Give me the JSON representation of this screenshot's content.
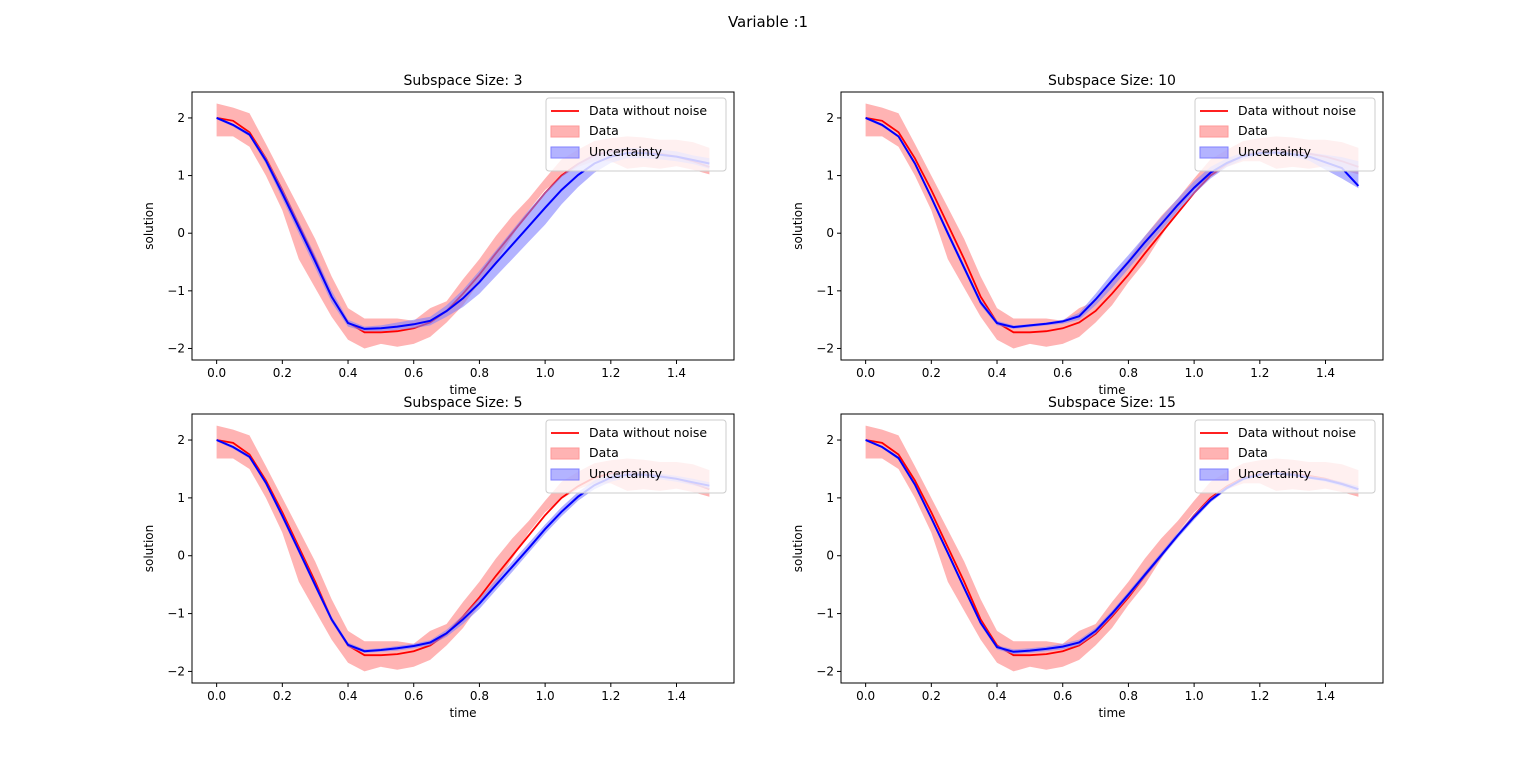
{
  "figure": {
    "suptitle": "Variable :1"
  },
  "colors": {
    "truth": "#ff0000",
    "data_band": "#ff9999",
    "uncertainty_band": "#8080ff",
    "model_line": "#0000ff"
  },
  "chart_data": [
    {
      "type": "line",
      "title": "Subspace Size: 3",
      "xlabel": "time",
      "ylabel": "solution",
      "xlim": [
        -0.075,
        1.575
      ],
      "ylim": [
        -2.2,
        2.45
      ],
      "xticks": [
        "0.0",
        "0.2",
        "0.4",
        "0.6",
        "0.8",
        "1.0",
        "1.2",
        "1.4"
      ],
      "yticks": [
        "2",
        "1",
        "0",
        "−1",
        "−2"
      ],
      "legend": {
        "position": "upper-right",
        "labels": [
          "Data without noise",
          "Data",
          "Uncertainty"
        ]
      },
      "x": [
        0.0,
        0.05,
        0.1,
        0.15,
        0.2,
        0.25,
        0.3,
        0.35,
        0.4,
        0.45,
        0.5,
        0.55,
        0.6,
        0.65,
        0.7,
        0.75,
        0.8,
        0.85,
        0.9,
        0.95,
        1.0,
        1.05,
        1.1,
        1.15,
        1.2,
        1.25,
        1.3,
        1.35,
        1.4,
        1.45,
        1.5
      ],
      "series": [
        {
          "name": "Data without noise",
          "values": [
            2.0,
            1.95,
            1.75,
            1.3,
            0.75,
            0.15,
            -0.45,
            -1.1,
            -1.55,
            -1.72,
            -1.72,
            -1.7,
            -1.65,
            -1.55,
            -1.35,
            -1.05,
            -0.72,
            -0.35,
            0.0,
            0.35,
            0.7,
            1.0,
            1.2,
            1.35,
            1.42,
            1.44,
            1.42,
            1.38,
            1.33,
            1.25,
            1.15
          ]
        },
        {
          "name": "Data",
          "lower": [
            1.68,
            1.68,
            1.5,
            1.0,
            0.4,
            -0.45,
            -0.95,
            -1.45,
            -1.85,
            -2.0,
            -1.92,
            -1.97,
            -1.92,
            -1.8,
            -1.55,
            -1.25,
            -0.85,
            -0.5,
            -0.05,
            0.4,
            0.75,
            0.98,
            1.15,
            1.25,
            1.25,
            1.12,
            1.15,
            1.12,
            1.16,
            1.1,
            1.02
          ],
          "upper": [
            2.25,
            2.18,
            2.08,
            1.55,
            1.0,
            0.45,
            -0.1,
            -0.75,
            -1.3,
            -1.48,
            -1.48,
            -1.48,
            -1.52,
            -1.3,
            -1.18,
            -0.8,
            -0.45,
            -0.05,
            0.3,
            0.6,
            0.95,
            1.28,
            1.45,
            1.6,
            1.65,
            1.68,
            1.66,
            1.62,
            1.62,
            1.58,
            1.48
          ]
        },
        {
          "name": "Uncertainty",
          "lower": [
            1.98,
            1.85,
            1.68,
            1.2,
            0.6,
            0.0,
            -0.6,
            -1.2,
            -1.62,
            -1.7,
            -1.7,
            -1.68,
            -1.65,
            -1.6,
            -1.45,
            -1.28,
            -1.05,
            -0.75,
            -0.45,
            -0.15,
            0.15,
            0.5,
            0.8,
            1.05,
            1.22,
            1.3,
            1.3,
            1.28,
            1.25,
            1.2,
            1.12
          ],
          "upper": [
            2.02,
            1.9,
            1.74,
            1.32,
            0.78,
            0.2,
            -0.38,
            -1.0,
            -1.5,
            -1.62,
            -1.6,
            -1.55,
            -1.5,
            -1.45,
            -1.25,
            -0.98,
            -0.65,
            -0.3,
            0.05,
            0.4,
            0.72,
            1.0,
            1.22,
            1.38,
            1.45,
            1.48,
            1.47,
            1.45,
            1.42,
            1.35,
            1.3
          ]
        },
        {
          "name": "mean",
          "values": [
            2.0,
            1.88,
            1.71,
            1.26,
            0.69,
            0.1,
            -0.49,
            -1.1,
            -1.56,
            -1.66,
            -1.65,
            -1.62,
            -1.58,
            -1.52,
            -1.35,
            -1.13,
            -0.85,
            -0.52,
            -0.2,
            0.12,
            0.44,
            0.75,
            1.01,
            1.21,
            1.33,
            1.39,
            1.39,
            1.36,
            1.33,
            1.27,
            1.21
          ]
        }
      ]
    },
    {
      "type": "line",
      "title": "Subspace Size: 10",
      "xlabel": "time",
      "ylabel": "solution",
      "xlim": [
        -0.075,
        1.575
      ],
      "ylim": [
        -2.2,
        2.45
      ],
      "xticks": [
        "0.0",
        "0.2",
        "0.4",
        "0.6",
        "0.8",
        "1.0",
        "1.2",
        "1.4"
      ],
      "yticks": [
        "2",
        "1",
        "0",
        "−1",
        "−2"
      ],
      "legend": {
        "position": "upper-right",
        "labels": [
          "Data without noise",
          "Data",
          "Uncertainty"
        ]
      },
      "x": [
        0.0,
        0.05,
        0.1,
        0.15,
        0.2,
        0.25,
        0.3,
        0.35,
        0.4,
        0.45,
        0.5,
        0.55,
        0.6,
        0.65,
        0.7,
        0.75,
        0.8,
        0.85,
        0.9,
        0.95,
        1.0,
        1.05,
        1.1,
        1.15,
        1.2,
        1.25,
        1.3,
        1.35,
        1.4,
        1.45,
        1.5
      ],
      "series": [
        {
          "name": "Data without noise",
          "values": [
            2.0,
            1.95,
            1.75,
            1.3,
            0.75,
            0.15,
            -0.45,
            -1.1,
            -1.55,
            -1.72,
            -1.72,
            -1.7,
            -1.65,
            -1.55,
            -1.35,
            -1.05,
            -0.72,
            -0.35,
            0.0,
            0.35,
            0.7,
            1.0,
            1.2,
            1.35,
            1.42,
            1.44,
            1.42,
            1.38,
            1.33,
            1.25,
            1.15
          ]
        },
        {
          "name": "Data",
          "lower": [
            1.68,
            1.68,
            1.5,
            1.0,
            0.4,
            -0.45,
            -0.95,
            -1.45,
            -1.85,
            -2.0,
            -1.92,
            -1.97,
            -1.92,
            -1.8,
            -1.55,
            -1.25,
            -0.85,
            -0.5,
            -0.05,
            0.4,
            0.75,
            0.98,
            1.15,
            1.25,
            1.25,
            1.12,
            1.15,
            1.12,
            1.16,
            1.1,
            1.02
          ],
          "upper": [
            2.25,
            2.18,
            2.08,
            1.55,
            1.0,
            0.45,
            -0.1,
            -0.75,
            -1.3,
            -1.48,
            -1.48,
            -1.48,
            -1.52,
            -1.3,
            -1.18,
            -0.8,
            -0.45,
            -0.05,
            0.3,
            0.6,
            0.95,
            1.28,
            1.45,
            1.6,
            1.65,
            1.68,
            1.66,
            1.62,
            1.62,
            1.58,
            1.48
          ]
        },
        {
          "name": "Uncertainty",
          "lower": [
            1.98,
            1.85,
            1.66,
            1.18,
            0.58,
            -0.05,
            -0.65,
            -1.25,
            -1.6,
            -1.66,
            -1.63,
            -1.6,
            -1.57,
            -1.5,
            -1.25,
            -0.95,
            -0.62,
            -0.28,
            0.05,
            0.38,
            0.68,
            0.95,
            1.15,
            1.28,
            1.35,
            1.36,
            1.32,
            1.26,
            1.1,
            0.95,
            0.78
          ]
        },
        {
          "name": "Uncertainty-upper",
          "values": [
            2.02,
            1.9,
            1.7,
            1.24,
            0.66,
            0.05,
            -0.55,
            -1.15,
            -1.52,
            -1.6,
            -1.58,
            -1.55,
            -1.5,
            -1.38,
            -1.05,
            -0.7,
            -0.38,
            -0.05,
            0.28,
            0.6,
            0.9,
            1.15,
            1.3,
            1.4,
            1.44,
            1.45,
            1.43,
            1.4,
            1.36,
            1.32,
            1.25
          ]
        },
        {
          "name": "mean",
          "values": [
            2.0,
            1.88,
            1.68,
            1.21,
            0.62,
            0.0,
            -0.6,
            -1.2,
            -1.56,
            -1.63,
            -1.6,
            -1.57,
            -1.53,
            -1.44,
            -1.15,
            -0.82,
            -0.5,
            -0.16,
            0.16,
            0.49,
            0.79,
            1.05,
            1.22,
            1.34,
            1.39,
            1.4,
            1.37,
            1.33,
            1.23,
            1.13,
            0.82
          ]
        }
      ]
    },
    {
      "type": "line",
      "title": "Subspace Size: 5",
      "xlabel": "time",
      "ylabel": "solution",
      "xlim": [
        -0.075,
        1.575
      ],
      "ylim": [
        -2.2,
        2.45
      ],
      "xticks": [
        "0.0",
        "0.2",
        "0.4",
        "0.6",
        "0.8",
        "1.0",
        "1.2",
        "1.4"
      ],
      "yticks": [
        "2",
        "1",
        "0",
        "−1",
        "−2"
      ],
      "legend": {
        "position": "upper-right",
        "labels": [
          "Data without noise",
          "Data",
          "Uncertainty"
        ]
      },
      "x": [
        0.0,
        0.05,
        0.1,
        0.15,
        0.2,
        0.25,
        0.3,
        0.35,
        0.4,
        0.45,
        0.5,
        0.55,
        0.6,
        0.65,
        0.7,
        0.75,
        0.8,
        0.85,
        0.9,
        0.95,
        1.0,
        1.05,
        1.1,
        1.15,
        1.2,
        1.25,
        1.3,
        1.35,
        1.4,
        1.45,
        1.5
      ],
      "series": [
        {
          "name": "Data without noise",
          "values": [
            2.0,
            1.95,
            1.75,
            1.3,
            0.75,
            0.15,
            -0.45,
            -1.1,
            -1.55,
            -1.72,
            -1.72,
            -1.7,
            -1.65,
            -1.55,
            -1.35,
            -1.05,
            -0.72,
            -0.35,
            0.0,
            0.35,
            0.7,
            1.0,
            1.2,
            1.35,
            1.42,
            1.44,
            1.42,
            1.38,
            1.33,
            1.25,
            1.15
          ]
        },
        {
          "name": "Data",
          "lower": [
            1.68,
            1.68,
            1.5,
            1.0,
            0.4,
            -0.45,
            -0.95,
            -1.45,
            -1.85,
            -2.0,
            -1.92,
            -1.97,
            -1.92,
            -1.8,
            -1.55,
            -1.25,
            -0.85,
            -0.5,
            -0.05,
            0.4,
            0.75,
            0.98,
            1.15,
            1.25,
            1.25,
            1.12,
            1.15,
            1.12,
            1.16,
            1.1,
            1.02
          ],
          "upper": [
            2.25,
            2.18,
            2.08,
            1.55,
            1.0,
            0.45,
            -0.1,
            -0.75,
            -1.3,
            -1.48,
            -1.48,
            -1.48,
            -1.52,
            -1.3,
            -1.18,
            -0.8,
            -0.45,
            -0.05,
            0.3,
            0.6,
            0.95,
            1.28,
            1.45,
            1.6,
            1.65,
            1.68,
            1.66,
            1.62,
            1.62,
            1.58,
            1.48
          ]
        },
        {
          "name": "Uncertainty",
          "lower": [
            1.98,
            1.85,
            1.68,
            1.22,
            0.64,
            0.04,
            -0.56,
            -1.15,
            -1.58,
            -1.68,
            -1.66,
            -1.64,
            -1.6,
            -1.55,
            -1.4,
            -1.18,
            -0.92,
            -0.6,
            -0.28,
            0.05,
            0.38,
            0.68,
            0.95,
            1.15,
            1.28,
            1.35,
            1.35,
            1.32,
            1.28,
            1.22,
            1.15
          ]
        },
        {
          "name": "Uncertainty-upper",
          "values": [
            2.02,
            1.9,
            1.74,
            1.3,
            0.74,
            0.14,
            -0.46,
            -1.05,
            -1.5,
            -1.62,
            -1.6,
            -1.56,
            -1.52,
            -1.46,
            -1.28,
            -1.03,
            -0.74,
            -0.42,
            -0.1,
            0.22,
            0.54,
            0.84,
            1.1,
            1.3,
            1.42,
            1.46,
            1.45,
            1.42,
            1.38,
            1.33,
            1.27
          ]
        },
        {
          "name": "mean",
          "values": [
            2.0,
            1.88,
            1.71,
            1.26,
            0.69,
            0.09,
            -0.51,
            -1.1,
            -1.54,
            -1.65,
            -1.63,
            -1.6,
            -1.56,
            -1.5,
            -1.34,
            -1.1,
            -0.83,
            -0.51,
            -0.19,
            0.13,
            0.46,
            0.76,
            1.02,
            1.22,
            1.35,
            1.4,
            1.4,
            1.37,
            1.33,
            1.27,
            1.21
          ]
        }
      ]
    },
    {
      "type": "line",
      "title": "Subspace Size: 15",
      "xlabel": "time",
      "ylabel": "solution",
      "xlim": [
        -0.075,
        1.575
      ],
      "ylim": [
        -2.2,
        2.45
      ],
      "xticks": [
        "0.0",
        "0.2",
        "0.4",
        "0.6",
        "0.8",
        "1.0",
        "1.2",
        "1.4"
      ],
      "yticks": [
        "2",
        "1",
        "0",
        "−1",
        "−2"
      ],
      "legend": {
        "position": "upper-right",
        "labels": [
          "Data without noise",
          "Data",
          "Uncertainty"
        ]
      },
      "x": [
        0.0,
        0.05,
        0.1,
        0.15,
        0.2,
        0.25,
        0.3,
        0.35,
        0.4,
        0.45,
        0.5,
        0.55,
        0.6,
        0.65,
        0.7,
        0.75,
        0.8,
        0.85,
        0.9,
        0.95,
        1.0,
        1.05,
        1.1,
        1.15,
        1.2,
        1.25,
        1.3,
        1.35,
        1.4,
        1.45,
        1.5
      ],
      "series": [
        {
          "name": "Data without noise",
          "values": [
            2.0,
            1.95,
            1.75,
            1.3,
            0.75,
            0.15,
            -0.45,
            -1.1,
            -1.55,
            -1.72,
            -1.72,
            -1.7,
            -1.65,
            -1.55,
            -1.35,
            -1.05,
            -0.72,
            -0.35,
            0.0,
            0.35,
            0.7,
            1.0,
            1.2,
            1.35,
            1.42,
            1.44,
            1.42,
            1.38,
            1.33,
            1.25,
            1.15
          ]
        },
        {
          "name": "Data",
          "lower": [
            1.68,
            1.68,
            1.5,
            1.0,
            0.4,
            -0.45,
            -0.95,
            -1.45,
            -1.85,
            -2.0,
            -1.92,
            -1.97,
            -1.92,
            -1.8,
            -1.55,
            -1.25,
            -0.85,
            -0.5,
            -0.05,
            0.4,
            0.75,
            0.98,
            1.15,
            1.25,
            1.25,
            1.12,
            1.15,
            1.12,
            1.16,
            1.1,
            1.02
          ],
          "upper": [
            2.25,
            2.18,
            2.08,
            1.55,
            1.0,
            0.45,
            -0.1,
            -0.75,
            -1.3,
            -1.48,
            -1.48,
            -1.48,
            -1.52,
            -1.3,
            -1.18,
            -0.8,
            -0.45,
            -0.05,
            0.3,
            0.6,
            0.95,
            1.28,
            1.45,
            1.6,
            1.65,
            1.68,
            1.66,
            1.62,
            1.62,
            1.58,
            1.48
          ]
        },
        {
          "name": "Uncertainty",
          "lower": [
            1.98,
            1.86,
            1.66,
            1.2,
            0.62,
            0.02,
            -0.6,
            -1.2,
            -1.62,
            -1.7,
            -1.68,
            -1.65,
            -1.62,
            -1.55,
            -1.35,
            -1.05,
            -0.72,
            -0.38,
            -0.04,
            0.3,
            0.62,
            0.92,
            1.14,
            1.3,
            1.38,
            1.4,
            1.37,
            1.33,
            1.28,
            1.2,
            1.1
          ]
        },
        {
          "name": "Uncertainty-upper",
          "values": [
            2.02,
            1.9,
            1.72,
            1.26,
            0.68,
            0.08,
            -0.52,
            -1.12,
            -1.55,
            -1.62,
            -1.6,
            -1.57,
            -1.52,
            -1.45,
            -1.25,
            -0.95,
            -0.62,
            -0.28,
            0.06,
            0.4,
            0.72,
            1.0,
            1.2,
            1.36,
            1.43,
            1.45,
            1.43,
            1.38,
            1.34,
            1.28,
            1.2
          ]
        },
        {
          "name": "mean",
          "values": [
            2.0,
            1.88,
            1.69,
            1.23,
            0.65,
            0.05,
            -0.56,
            -1.16,
            -1.58,
            -1.66,
            -1.64,
            -1.61,
            -1.57,
            -1.5,
            -1.3,
            -1.0,
            -0.67,
            -0.33,
            0.01,
            0.35,
            0.67,
            0.96,
            1.17,
            1.33,
            1.4,
            1.42,
            1.4,
            1.35,
            1.31,
            1.24,
            1.15
          ]
        }
      ]
    }
  ]
}
